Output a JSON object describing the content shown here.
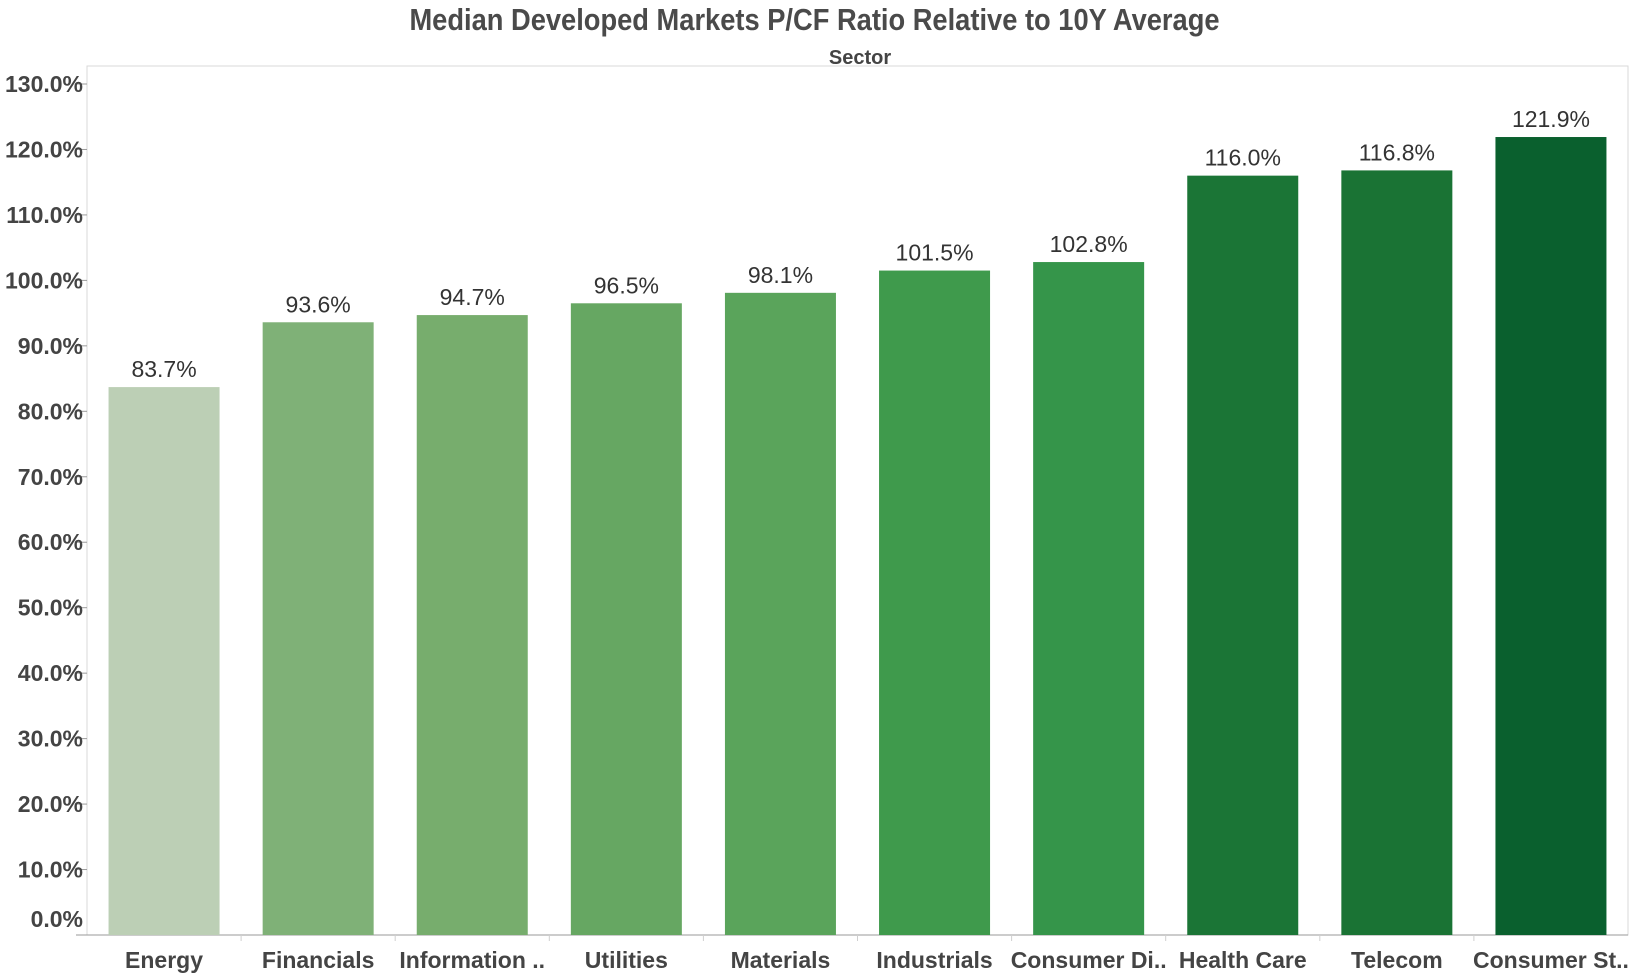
{
  "chart_data": {
    "type": "bar",
    "title": "Median Developed Markets P/CF Ratio Relative to 10Y Average",
    "column_header": "Sector",
    "xlabel": "",
    "ylabel": "",
    "categories": [
      "Energy",
      "Financials",
      "Information ..",
      "Utilities",
      "Materials",
      "Industrials",
      "Consumer Di..",
      "Health Care",
      "Telecom",
      "Consumer St.."
    ],
    "values": [
      83.7,
      93.6,
      94.7,
      96.5,
      98.1,
      101.5,
      102.8,
      116.0,
      116.8,
      121.9
    ],
    "value_labels": [
      "83.7%",
      "93.6%",
      "94.7%",
      "96.5%",
      "98.1%",
      "101.5%",
      "102.8%",
      "116.0%",
      "116.8%",
      "121.9%"
    ],
    "colors": [
      "#bccfb5",
      "#7fb177",
      "#77ad6d",
      "#66a762",
      "#5aa45b",
      "#3f9a4c",
      "#35954a",
      "#1b7536",
      "#1a7334",
      "#0a602e"
    ],
    "ylim": [
      0,
      130
    ],
    "yticks": [
      0,
      10,
      20,
      30,
      40,
      50,
      60,
      70,
      80,
      90,
      100,
      110,
      120,
      130
    ],
    "ytick_labels": [
      "0.0%",
      "10.0%",
      "20.0%",
      "30.0%",
      "40.0%",
      "50.0%",
      "60.0%",
      "70.0%",
      "80.0%",
      "90.0%",
      "100.0%",
      "110.0%",
      "120.0%",
      "130.0%"
    ],
    "grid": false,
    "legend": "none"
  }
}
